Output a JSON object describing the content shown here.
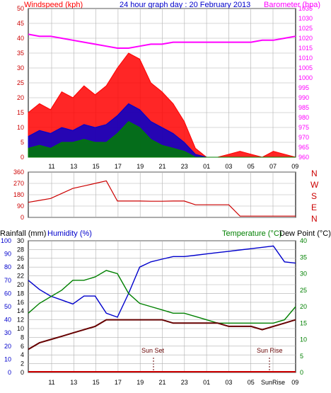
{
  "header": {
    "left_title": "Windspeed (kph)",
    "center_title": "24 hour graph day : 20 February 2013",
    "right_title": "Barometer (hpa)"
  },
  "bottom_labels": {
    "rainfall": "Rainfall (mm)",
    "humidity": "Humidity (%)",
    "temperature": "Temperature (°C)",
    "dewpoint": "Dew Point (°C)",
    "sun_set": "Sun Set",
    "sun_rise": "Sun Rise"
  },
  "direction_labels": [
    "N",
    "W",
    "S",
    "E",
    "N"
  ],
  "x_ticks": [
    "11",
    "13",
    "15",
    "17",
    "19",
    "21",
    "23",
    "01",
    "03",
    "05",
    "07",
    "09"
  ],
  "x_ticks_bottom": [
    "11",
    "13",
    "15",
    "17",
    "19",
    "21",
    "23",
    "01",
    "03",
    "05",
    "SunRise",
    "09"
  ],
  "colors": {
    "wind_gust": "#ff0000",
    "wind_avg": "#0000cc",
    "wind_low": "#008000",
    "barometer": "#ff00ff",
    "direction": "#cc0000",
    "humidity": "#0000cc",
    "temperature": "#008000",
    "dewpoint": "#660000",
    "rain": "#cc0000",
    "grid": "#b0b0b0",
    "axis_red": "#cc0000",
    "axis_blue": "#0000cc",
    "axis_green": "#008000",
    "axis_magenta": "#ff00ff"
  },
  "chart_data": [
    {
      "type": "line",
      "name": "wind_baro",
      "x": [
        "10",
        "11",
        "12",
        "13",
        "14",
        "15",
        "16",
        "17",
        "18",
        "19",
        "20",
        "21",
        "22",
        "23",
        "00",
        "01",
        "02",
        "03",
        "04",
        "05",
        "06",
        "07",
        "08",
        "09",
        "10"
      ],
      "series": [
        {
          "name": "gust",
          "values": [
            15,
            18,
            16,
            22,
            20,
            24,
            21,
            24,
            30,
            35,
            33,
            25,
            22,
            18,
            12,
            3,
            0,
            0,
            1,
            2,
            1,
            0,
            2,
            1,
            0
          ]
        },
        {
          "name": "average",
          "values": [
            7,
            9,
            8,
            10,
            9,
            11,
            10,
            11,
            14,
            18,
            16,
            12,
            10,
            8,
            5,
            1,
            0,
            0,
            0,
            0,
            0,
            0,
            0,
            0,
            0
          ]
        },
        {
          "name": "low",
          "values": [
            3,
            4,
            3,
            5,
            5,
            6,
            5,
            5,
            8,
            12,
            10,
            6,
            4,
            3,
            2,
            0,
            0,
            0,
            0,
            0,
            0,
            0,
            0,
            0,
            0
          ]
        },
        {
          "name": "barometer",
          "values": [
            1022,
            1021,
            1021,
            1020,
            1019,
            1018,
            1017,
            1016,
            1015,
            1015,
            1016,
            1017,
            1017,
            1018,
            1018,
            1018,
            1018,
            1018,
            1018,
            1018,
            1018,
            1019,
            1019,
            1020,
            1021
          ]
        }
      ],
      "left_axis": {
        "ylim": [
          0,
          50
        ],
        "ticks": [
          0,
          5,
          10,
          15,
          20,
          25,
          30,
          35,
          40,
          45,
          50
        ]
      },
      "right_axis": {
        "ylim": [
          960,
          1035
        ],
        "ticks": [
          960,
          965,
          970,
          975,
          980,
          985,
          990,
          995,
          1000,
          1005,
          1010,
          1015,
          1020,
          1025,
          1030,
          1035
        ]
      }
    },
    {
      "type": "line",
      "name": "wind_direction",
      "x": [
        "10",
        "11",
        "12",
        "13",
        "14",
        "15",
        "16",
        "17",
        "18",
        "19",
        "20",
        "21",
        "22",
        "23",
        "00",
        "01",
        "02",
        "03",
        "04",
        "05",
        "06",
        "07",
        "08",
        "09",
        "10"
      ],
      "values": [
        120,
        135,
        150,
        190,
        230,
        250,
        270,
        290,
        130,
        130,
        130,
        128,
        128,
        130,
        130,
        100,
        100,
        100,
        100,
        10,
        10,
        10,
        10,
        10,
        10
      ],
      "ylim": [
        0,
        360
      ],
      "ticks": [
        0,
        45,
        90,
        135,
        180,
        225,
        270,
        315,
        360
      ]
    },
    {
      "type": "line",
      "name": "temp_hum",
      "x": [
        "10",
        "11",
        "12",
        "13",
        "14",
        "15",
        "16",
        "17",
        "18",
        "19",
        "20",
        "21",
        "22",
        "23",
        "00",
        "01",
        "02",
        "03",
        "04",
        "05",
        "06",
        "07",
        "08",
        "09",
        "10"
      ],
      "series": [
        {
          "name": "humidity",
          "values": [
            70,
            63,
            58,
            55,
            52,
            58,
            58,
            45,
            42,
            60,
            80,
            84,
            86,
            88,
            88,
            89,
            90,
            91,
            92,
            93,
            94,
            95,
            96,
            84,
            83
          ]
        },
        {
          "name": "temperature",
          "values": [
            18,
            21,
            23,
            25,
            28,
            28,
            29,
            31,
            30,
            24,
            21,
            20,
            19,
            18,
            18,
            17,
            16,
            15,
            15,
            15,
            15,
            15,
            15,
            16,
            20
          ]
        },
        {
          "name": "dewpoint",
          "values": [
            7,
            9,
            10,
            11,
            12,
            13,
            14,
            16,
            16,
            16,
            16,
            16,
            16,
            15,
            15,
            15,
            15,
            15,
            14,
            14,
            14,
            13,
            14,
            15,
            16
          ]
        }
      ],
      "left_axis_humidity": {
        "ylim": [
          0,
          100
        ],
        "ticks": [
          0,
          10,
          20,
          30,
          40,
          50,
          60,
          70,
          80,
          90,
          100
        ]
      },
      "left_axis_rain": {
        "ylim": [
          0,
          30
        ],
        "ticks": [
          0,
          2,
          4,
          6,
          8,
          10,
          12,
          14,
          16,
          18,
          20,
          22,
          24,
          26,
          28,
          30
        ]
      },
      "right_axis_temp": {
        "ylim": [
          0,
          40
        ],
        "ticks": [
          0,
          5,
          10,
          15,
          20,
          25,
          30,
          35,
          40
        ]
      }
    }
  ]
}
